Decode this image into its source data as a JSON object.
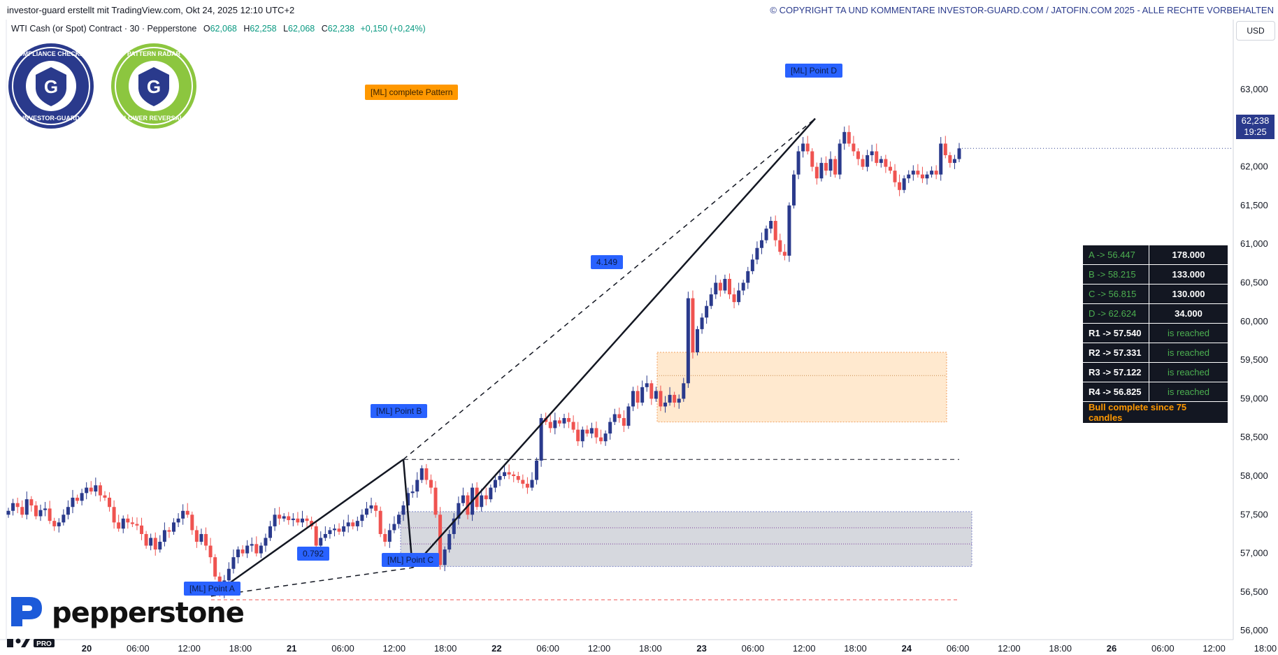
{
  "header": {
    "left_text": "investor-guard erstellt mit TradingView.com, Okt 24, 2025 12:10 UTC+2",
    "right_text": "© COPYRIGHT TA UND KOMMENTARE INVESTOR-GUARD.COM / JATOFIN.COM 2025 - ALLE RECHTE VORBEHALTEN"
  },
  "legend": {
    "symbol": "WTI Cash (or Spot) Contract · 30 · Pepperstone",
    "o_label": "O",
    "o_value": "62,068",
    "h_label": "H",
    "h_value": "62,258",
    "l_label": "L",
    "l_value": "62,068",
    "c_label": "C",
    "c_value": "62,238",
    "change": "+0,150 (+0,24%)"
  },
  "badges": [
    {
      "name": "compliance-badge",
      "text": "COMPLIANCE CHECKED · INVESTOR-GUARD",
      "color": "#2a3a8c"
    },
    {
      "name": "pattern-radar-badge",
      "text": "PATTERN RADAR · LOWER REVERSAL",
      "color": "#8cc63f"
    }
  ],
  "labels": {
    "point_a": "[ML] Point A",
    "point_b": "[ML] Point B",
    "point_c": "[ML] Point C",
    "point_d": "[ML] Point D",
    "complete": "[ML] complete Pattern",
    "ratio_bc": "0.792",
    "ratio_cd": "4.149"
  },
  "stats": {
    "rows": [
      {
        "k": "A -> 56.447",
        "v": "178.000",
        "type": "point"
      },
      {
        "k": "B -> 58.215",
        "v": "133.000",
        "type": "point"
      },
      {
        "k": "C -> 56.815",
        "v": "130.000",
        "type": "point"
      },
      {
        "k": "D -> 62.624",
        "v": "34.000",
        "type": "point"
      },
      {
        "k": "R1 -> 57.540",
        "v": "is reached",
        "type": "r"
      },
      {
        "k": "R2 -> 57.331",
        "v": "is reached",
        "type": "r"
      },
      {
        "k": "R3 -> 57.122",
        "v": "is reached",
        "type": "r"
      },
      {
        "k": "R4 -> 56.825",
        "v": "is reached",
        "type": "r"
      }
    ],
    "note": "Bull complete since 75 candles"
  },
  "price_axis": {
    "currency": "USD",
    "last_price": "62,238",
    "countdown": "19:25"
  },
  "brand": {
    "pepperstone": "pepperstone",
    "tv_logo": "17 PRO"
  },
  "colors": {
    "up": "#2a3a8c",
    "down": "#ef5350",
    "pattern_line": "#131722",
    "label_blue": "#2962ff",
    "label_orange": "#ff9800",
    "zone_orange": "#ffe9cf",
    "zone_grey": "#d6d8de"
  },
  "chart_data": {
    "type": "candlestick",
    "symbol": "WTI Cash (or Spot) Contract",
    "interval": "30",
    "y_ticks": [
      56000,
      56500,
      57000,
      57500,
      58000,
      58500,
      59000,
      59500,
      60000,
      60500,
      61000,
      61500,
      62000,
      62500,
      63000
    ],
    "y_tick_labels": [
      "56,000",
      "56,500",
      "57,000",
      "57,500",
      "58,000",
      "58,500",
      "59,000",
      "59,500",
      "60,000",
      "60,500",
      "61,000",
      "61,500",
      "62,000",
      "62,500",
      "63,000"
    ],
    "x_ticks": [
      {
        "label": "20",
        "bold": true
      },
      {
        "label": "06:00"
      },
      {
        "label": "12:00"
      },
      {
        "label": "18:00"
      },
      {
        "label": "21",
        "bold": true
      },
      {
        "label": "06:00"
      },
      {
        "label": "12:00"
      },
      {
        "label": "18:00"
      },
      {
        "label": "22",
        "bold": true
      },
      {
        "label": "06:00"
      },
      {
        "label": "12:00"
      },
      {
        "label": "18:00"
      },
      {
        "label": "23",
        "bold": true
      },
      {
        "label": "06:00"
      },
      {
        "label": "12:00"
      },
      {
        "label": "18:00"
      },
      {
        "label": "24",
        "bold": true
      },
      {
        "label": "06:00"
      },
      {
        "label": "12:00"
      },
      {
        "label": "18:00"
      },
      {
        "label": "26",
        "bold": true
      },
      {
        "label": "06:00"
      },
      {
        "label": "12:00"
      },
      {
        "label": "18:00"
      }
    ],
    "pattern_points": [
      {
        "name": "A",
        "price": 56.447
      },
      {
        "name": "B",
        "price": 58.215
      },
      {
        "name": "C",
        "price": 56.815
      },
      {
        "name": "D",
        "price": 62.624
      }
    ],
    "retracements": [
      57.54,
      57.331,
      57.122,
      56.825
    ],
    "levels": [
      {
        "name": "B-level",
        "price": 58.215
      },
      {
        "name": "A-level",
        "price": 56.4
      }
    ],
    "zones": [
      {
        "name": "target-zone",
        "top": 59.6,
        "bottom": 58.7,
        "mid": 59.3
      },
      {
        "name": "reversal-zone",
        "top": 57.54,
        "bottom": 56.83
      }
    ],
    "closes": [
      57.55,
      57.65,
      57.6,
      57.5,
      57.7,
      57.62,
      57.48,
      57.56,
      57.58,
      57.42,
      57.35,
      57.4,
      57.5,
      57.6,
      57.72,
      57.68,
      57.78,
      57.85,
      57.8,
      57.88,
      57.75,
      57.72,
      57.6,
      57.4,
      57.32,
      57.45,
      57.4,
      57.38,
      57.36,
      57.25,
      57.1,
      57.2,
      57.05,
      57.15,
      57.3,
      57.28,
      57.4,
      57.45,
      57.55,
      57.5,
      57.3,
      57.15,
      57.25,
      57.1,
      56.95,
      56.7,
      56.5,
      56.65,
      56.8,
      56.95,
      57.05,
      57.0,
      57.1,
      57.12,
      57.0,
      57.1,
      57.2,
      57.35,
      57.5,
      57.45,
      57.48,
      57.43,
      57.45,
      57.4,
      57.45,
      57.42,
      57.35,
      57.1,
      57.2,
      57.25,
      57.3,
      57.32,
      57.28,
      57.35,
      57.4,
      57.35,
      57.42,
      57.5,
      57.58,
      57.62,
      57.55,
      57.25,
      57.15,
      57.3,
      57.38,
      57.5,
      57.62,
      57.78,
      57.8,
      57.95,
      58.1,
      57.95,
      57.85,
      57.5,
      56.85,
      57.05,
      57.25,
      57.45,
      57.65,
      57.75,
      57.5,
      57.85,
      57.6,
      57.75,
      57.7,
      57.85,
      57.95,
      58.0,
      58.05,
      58.02,
      58.0,
      57.95,
      57.9,
      57.85,
      57.95,
      58.2,
      58.75,
      58.7,
      58.62,
      58.72,
      58.68,
      58.75,
      58.7,
      58.6,
      58.45,
      58.6,
      58.55,
      58.62,
      58.5,
      58.45,
      58.55,
      58.7,
      58.8,
      58.75,
      58.65,
      58.9,
      59.1,
      58.95,
      59.15,
      59.2,
      59.0,
      59.1,
      58.9,
      58.95,
      59.05,
      58.95,
      59.0,
      59.2,
      60.3,
      59.6,
      59.9,
      60.05,
      60.2,
      60.35,
      60.5,
      60.4,
      60.55,
      60.35,
      60.25,
      60.4,
      60.5,
      60.65,
      60.8,
      60.95,
      61.05,
      61.2,
      61.3,
      61.05,
      60.9,
      60.85,
      61.5,
      61.9,
      62.2,
      62.3,
      62.2,
      62.0,
      61.85,
      62.05,
      61.95,
      62.1,
      61.9,
      62.3,
      62.45,
      62.3,
      62.2,
      62.1,
      62.0,
      62.15,
      62.2,
      62.05,
      62.1,
      62.0,
      61.95,
      61.8,
      61.7,
      61.85,
      61.9,
      61.95,
      61.9,
      61.85,
      61.9,
      61.95,
      61.9,
      62.3,
      62.15,
      62.05,
      62.1,
      62.238
    ]
  }
}
